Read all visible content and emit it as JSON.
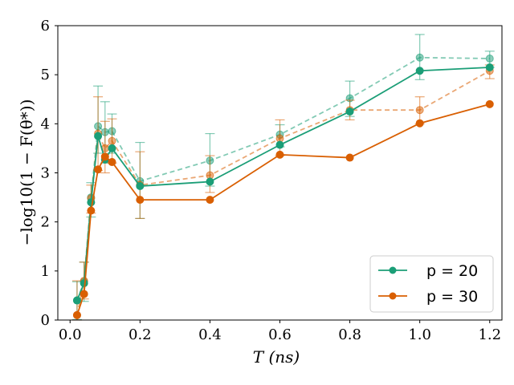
{
  "chart_data": {
    "type": "line",
    "title": "",
    "xlabel": "T (ns)",
    "ylabel": "−log10(1 − F(θ*))",
    "xlim": [
      -0.035,
      1.235
    ],
    "ylim": [
      0,
      6
    ],
    "xticks": [
      0.0,
      0.2,
      0.4,
      0.6,
      0.8,
      1.0,
      1.2
    ],
    "xtick_labels": [
      "0.0",
      "0.2",
      "0.4",
      "0.6",
      "0.8",
      "1.0",
      "1.2"
    ],
    "yticks": [
      0,
      1,
      2,
      3,
      4,
      5,
      6
    ],
    "ytick_labels": [
      "0",
      "1",
      "2",
      "3",
      "4",
      "5",
      "6"
    ],
    "grid": false,
    "legend_position": "bottom-right",
    "x": [
      0.02,
      0.04,
      0.06,
      0.08,
      0.1,
      0.12,
      0.2,
      0.4,
      0.6,
      0.8,
      1.0,
      1.2
    ],
    "series": [
      {
        "name": "p = 20",
        "style": "solid",
        "in_legend": true,
        "color": "#1b9e77",
        "values": [
          0.4,
          0.75,
          2.4,
          3.75,
          3.27,
          3.5,
          2.73,
          2.82,
          3.57,
          4.25,
          5.08,
          5.15
        ]
      },
      {
        "name": "p = 30",
        "style": "solid",
        "in_legend": true,
        "color": "#d95f02",
        "values": [
          0.1,
          0.53,
          2.23,
          3.07,
          3.33,
          3.22,
          2.45,
          2.45,
          3.37,
          3.31,
          4.01,
          4.4
        ]
      },
      {
        "name": "p = 20 (mean)",
        "style": "dashed",
        "in_legend": false,
        "color": "#1b9e77",
        "values": [
          0.4,
          0.78,
          2.5,
          3.95,
          3.83,
          3.85,
          2.83,
          3.25,
          3.78,
          4.52,
          5.35,
          5.33
        ],
        "err_low": [
          0.01,
          0.38,
          2.1,
          3.4,
          3.2,
          3.4,
          2.07,
          2.73,
          3.53,
          4.15,
          4.9,
          5.15
        ],
        "err_high": [
          0.78,
          1.18,
          2.8,
          4.77,
          4.45,
          4.2,
          3.62,
          3.8,
          3.98,
          4.87,
          5.82,
          5.48
        ]
      },
      {
        "name": "p = 30 (mean)",
        "style": "dashed",
        "in_legend": false,
        "color": "#d95f02",
        "values": [
          0.1,
          0.8,
          2.48,
          3.8,
          3.5,
          3.65,
          2.75,
          2.95,
          3.7,
          4.28,
          4.28,
          5.08
        ],
        "err_low": [
          0.0,
          0.43,
          2.18,
          3.05,
          3.0,
          3.2,
          2.07,
          2.6,
          3.35,
          4.08,
          4.0,
          4.92
        ],
        "err_high": [
          0.8,
          1.18,
          2.75,
          4.55,
          4.05,
          4.1,
          3.43,
          3.35,
          4.08,
          4.48,
          4.55,
          5.2
        ]
      }
    ]
  }
}
